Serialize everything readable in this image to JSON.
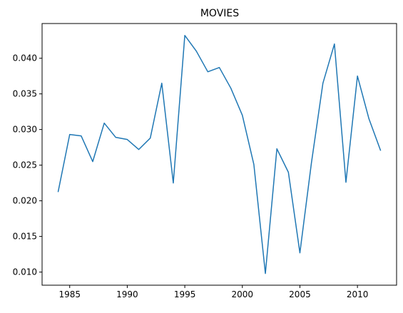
{
  "chart_data": {
    "type": "line",
    "title": "MOVIES",
    "xlabel": "",
    "ylabel": "",
    "x": [
      1984,
      1985,
      1986,
      1987,
      1988,
      1989,
      1990,
      1991,
      1992,
      1993,
      1994,
      1995,
      1996,
      1997,
      1998,
      1999,
      2000,
      2001,
      2002,
      2003,
      2004,
      2005,
      2006,
      2007,
      2008,
      2009,
      2010,
      2011,
      2012
    ],
    "series": [
      {
        "values": [
          0.0213,
          0.0293,
          0.0291,
          0.0255,
          0.0309,
          0.0289,
          0.0286,
          0.0272,
          0.0288,
          0.0365,
          0.0225,
          0.0432,
          0.041,
          0.0381,
          0.0387,
          0.0358,
          0.032,
          0.0251,
          0.0098,
          0.0273,
          0.024,
          0.0127,
          0.0253,
          0.0365,
          0.042,
          0.0226,
          0.0375,
          0.0315,
          0.0271
        ],
        "color": "#1f77b4"
      }
    ],
    "x_ticks": [
      1985,
      1990,
      1995,
      2000,
      2005,
      2010
    ],
    "x_tick_labels": [
      "1985",
      "1990",
      "1995",
      "2000",
      "2005",
      "2010"
    ],
    "y_ticks": [
      0.01,
      0.015,
      0.02,
      0.025,
      0.03,
      0.035,
      0.04
    ],
    "y_tick_labels": [
      "0.010",
      "0.015",
      "0.020",
      "0.025",
      "0.030",
      "0.035",
      "0.040"
    ],
    "xlim": [
      1982.6,
      2013.4
    ],
    "ylim": [
      0.00816,
      0.04487
    ],
    "grid": false,
    "legend": "none"
  }
}
